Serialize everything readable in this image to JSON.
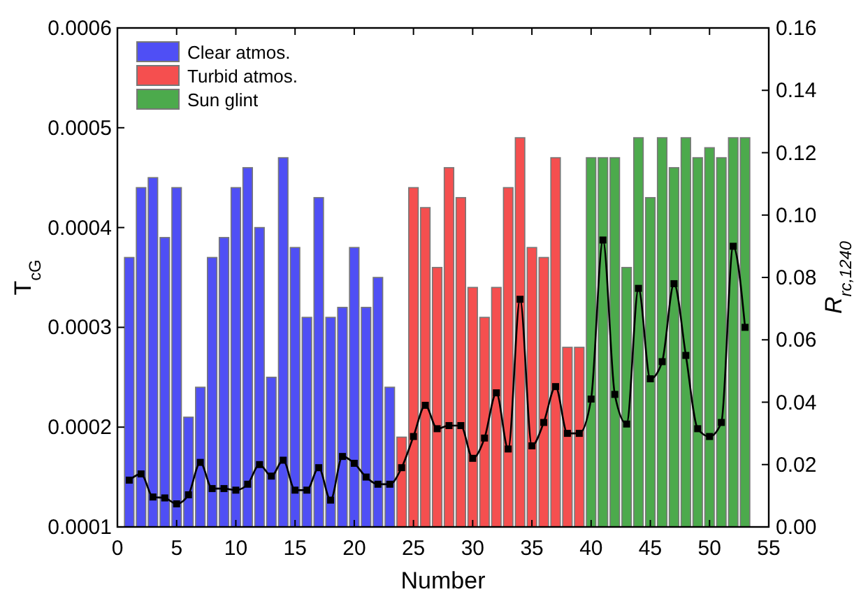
{
  "chart_data": {
    "type": "bar",
    "xlabel": "Number",
    "ylabel": "T$_{cG}$",
    "y2label": "R$_{rc,1240}$",
    "xlim": [
      0,
      55
    ],
    "xticks": [
      0,
      5,
      10,
      15,
      20,
      25,
      30,
      35,
      40,
      45,
      50,
      55
    ],
    "ylim": [
      0.0001,
      0.0006
    ],
    "yticks": [
      0.0001,
      0.0002,
      0.0003,
      0.0004,
      0.0005,
      0.0006
    ],
    "y2lim": [
      0,
      0.16
    ],
    "y2ticks": [
      {
        "value": 0,
        "label": "0.00"
      },
      {
        "value": 0.02,
        "label": "0.02"
      },
      {
        "value": 0.04,
        "label": "0.04"
      },
      {
        "value": 0.06,
        "label": "0.06"
      },
      {
        "value": 0.08,
        "label": "0.08"
      },
      {
        "value": 0.1,
        "label": "0.10"
      },
      {
        "value": 0.12,
        "label": "0.12"
      },
      {
        "value": 0.14,
        "label": "0.14"
      },
      {
        "value": 0.16,
        "label": "0.16"
      }
    ],
    "legend": "top left",
    "grid": false,
    "series": [
      {
        "name": "Clear atmos.",
        "color": "#4f4ff5",
        "x": [
          1,
          2,
          3,
          4,
          5,
          6,
          7,
          8,
          9,
          10,
          11,
          12,
          13,
          14,
          15,
          16,
          17,
          18,
          19,
          20,
          21,
          22,
          23
        ],
        "values": [
          0.00037,
          0.00044,
          0.00045,
          0.00039,
          0.00044,
          0.00021,
          0.00024,
          0.00037,
          0.00039,
          0.00044,
          0.00046,
          0.0004,
          0.00025,
          0.00047,
          0.00038,
          0.00031,
          0.00043,
          0.00031,
          0.00032,
          0.00038,
          0.00032,
          0.00035,
          0.00024
        ]
      },
      {
        "name": "Turbid atmos.",
        "color": "#f54f4f",
        "x": [
          24,
          25,
          26,
          27,
          28,
          29,
          30,
          31,
          32,
          33,
          34,
          35,
          36,
          37,
          38,
          39
        ],
        "values": [
          0.00019,
          0.00044,
          0.00042,
          0.00036,
          0.00046,
          0.00043,
          0.00034,
          0.00031,
          0.00034,
          0.00044,
          0.00049,
          0.00038,
          0.00037,
          0.00047,
          0.00028,
          0.00028
        ]
      },
      {
        "name": "Sun glint",
        "color": "#4caa4c",
        "x": [
          40,
          41,
          42,
          43,
          44,
          45,
          46,
          47,
          48,
          49,
          50,
          51,
          52,
          53
        ],
        "values": [
          0.00047,
          0.00047,
          0.00047,
          0.00036,
          0.00049,
          0.00043,
          0.00049,
          0.00046,
          0.00049,
          0.00047,
          0.00048,
          0.00047,
          0.00049,
          0.00049
        ]
      },
      {
        "type": "line",
        "axis": "y2",
        "color": "#000000",
        "marker": "square",
        "line_style": "solid",
        "x": [
          1,
          2,
          3,
          4,
          5,
          6,
          7,
          8,
          9,
          10,
          11,
          12,
          13,
          14,
          15,
          16,
          17,
          18,
          19,
          20,
          21,
          22,
          23,
          24,
          25,
          26,
          27,
          28,
          29,
          30,
          31,
          32,
          33,
          34,
          35,
          36,
          37,
          38,
          39,
          40,
          41,
          42,
          43,
          44,
          45,
          46,
          47,
          48,
          49,
          50,
          51,
          52,
          53
        ],
        "values": [
          0.015,
          0.017,
          0.0096,
          0.0093,
          0.0074,
          0.0103,
          0.0207,
          0.0123,
          0.0123,
          0.0118,
          0.0137,
          0.02,
          0.0163,
          0.0214,
          0.0118,
          0.0118,
          0.019,
          0.0086,
          0.0226,
          0.0204,
          0.016,
          0.0137,
          0.0137,
          0.019,
          0.029,
          0.039,
          0.0315,
          0.0325,
          0.0325,
          0.022,
          0.0285,
          0.043,
          0.025,
          0.073,
          0.026,
          0.0335,
          0.045,
          0.03,
          0.03,
          0.041,
          0.092,
          0.0425,
          0.033,
          0.0765,
          0.0475,
          0.053,
          0.078,
          0.055,
          0.0315,
          0.029,
          0.0335,
          0.09,
          0.064
        ]
      }
    ]
  }
}
